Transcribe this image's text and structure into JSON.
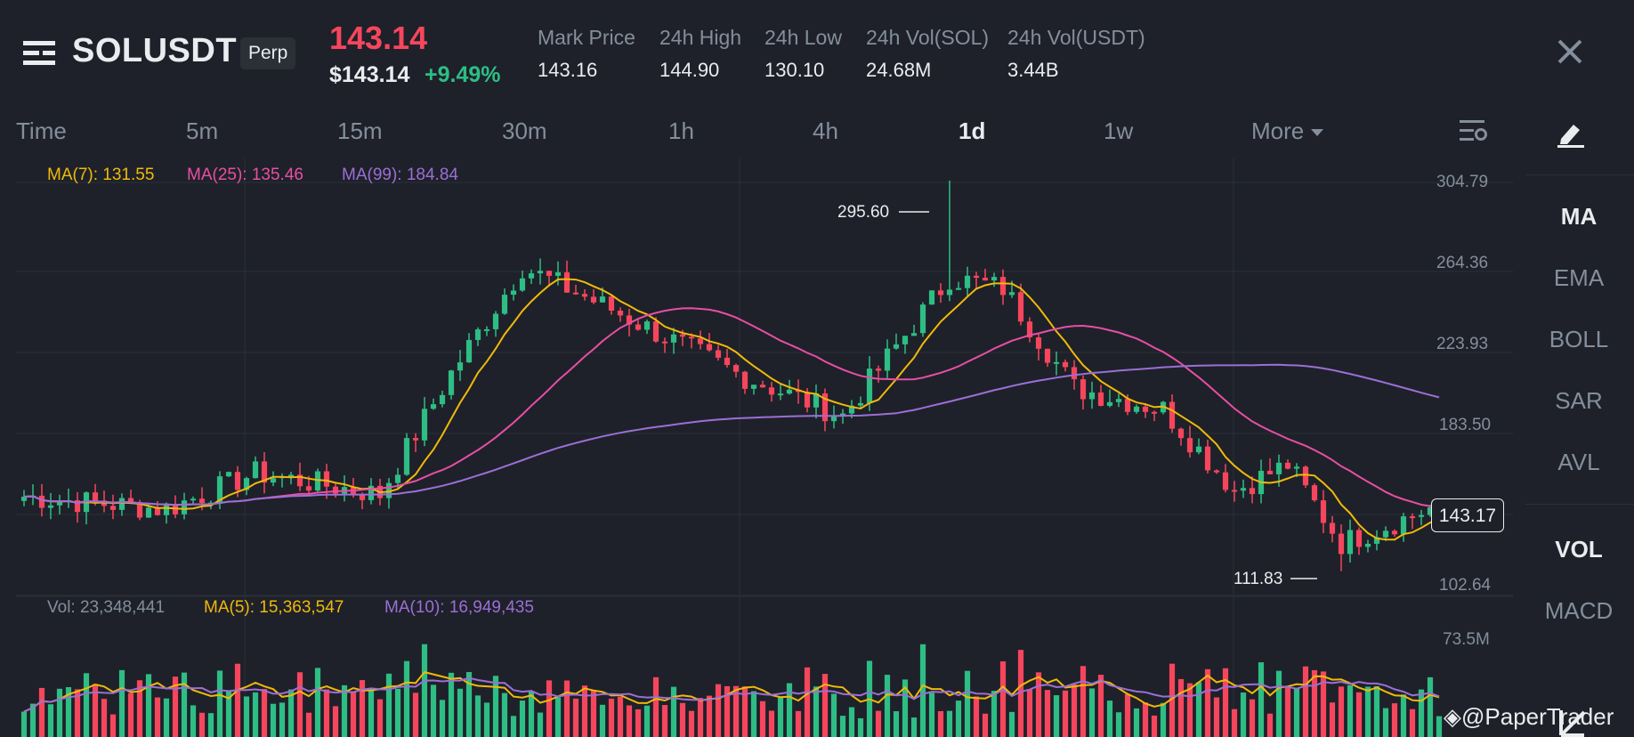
{
  "header": {
    "symbol": "SOLUSDT",
    "contract_type": "Perp",
    "last_price": "143.14",
    "price_usd": "$143.14",
    "change_pct": "+9.49%",
    "stats": [
      {
        "label": "Mark Price",
        "value": "143.16"
      },
      {
        "label": "24h High",
        "value": "144.90"
      },
      {
        "label": "24h Low",
        "value": "130.10"
      },
      {
        "label": "24h Vol(SOL)",
        "value": "24.68M"
      },
      {
        "label": "24h Vol(USDT)",
        "value": "3.44B"
      }
    ]
  },
  "timeframes": {
    "label": "Time",
    "items": [
      "5m",
      "15m",
      "30m",
      "1h",
      "4h",
      "1d",
      "1w"
    ],
    "active": "1d",
    "more_label": "More"
  },
  "sidebar": {
    "main_indicators": [
      "MA",
      "EMA",
      "BOLL",
      "SAR",
      "AVL"
    ],
    "main_active": "MA",
    "sub_indicators": [
      "VOL",
      "MACD"
    ],
    "sub_active": "VOL"
  },
  "ma_legend": {
    "ma7": "MA(7): 131.55",
    "ma25": "MA(25): 135.46",
    "ma99": "MA(99): 184.84"
  },
  "vol_legend": {
    "vol": "Vol: 23,348,441",
    "ma5": "MA(5): 15,363,547",
    "ma10": "MA(10): 16,949,435"
  },
  "price_axis": [
    "304.79",
    "264.36",
    "223.93",
    "183.50",
    "102.64"
  ],
  "vol_axis": [
    "73.5M"
  ],
  "current_price_tag": "143.17",
  "high_marker": "295.60",
  "low_marker": "111.83",
  "watermark": "@PaperTrader",
  "colors": {
    "up": "#2ebd85",
    "down": "#f6465d",
    "ma7": "#f0b90b",
    "ma25": "#e84ea5",
    "ma99": "#9b6fd6",
    "background": "#1e2129",
    "text_muted": "#848e9c"
  },
  "chart_data": {
    "type": "candlestick",
    "ylim": [
      100,
      306
    ],
    "candles_count": 160,
    "key_points": [
      {
        "index": 0,
        "close": 147
      },
      {
        "index": 16,
        "close": 141
      },
      {
        "index": 26,
        "close": 158
      },
      {
        "index": 40,
        "close": 148
      },
      {
        "index": 48,
        "close": 205
      },
      {
        "index": 56,
        "close": 255
      },
      {
        "index": 66,
        "close": 235
      },
      {
        "index": 80,
        "close": 205
      },
      {
        "index": 92,
        "close": 185
      },
      {
        "index": 104,
        "close": 250
      },
      {
        "index": 110,
        "close": 245
      },
      {
        "index": 118,
        "close": 198
      },
      {
        "index": 128,
        "close": 188
      },
      {
        "index": 136,
        "close": 150
      },
      {
        "index": 142,
        "close": 162
      },
      {
        "index": 148,
        "close": 125
      },
      {
        "index": 159,
        "close": 143
      }
    ],
    "extremes": {
      "high": 295.6,
      "low": 111.83
    },
    "indicators": [
      "MA(7)",
      "MA(25)",
      "MA(99)"
    ],
    "volume_max": "73.5M"
  }
}
